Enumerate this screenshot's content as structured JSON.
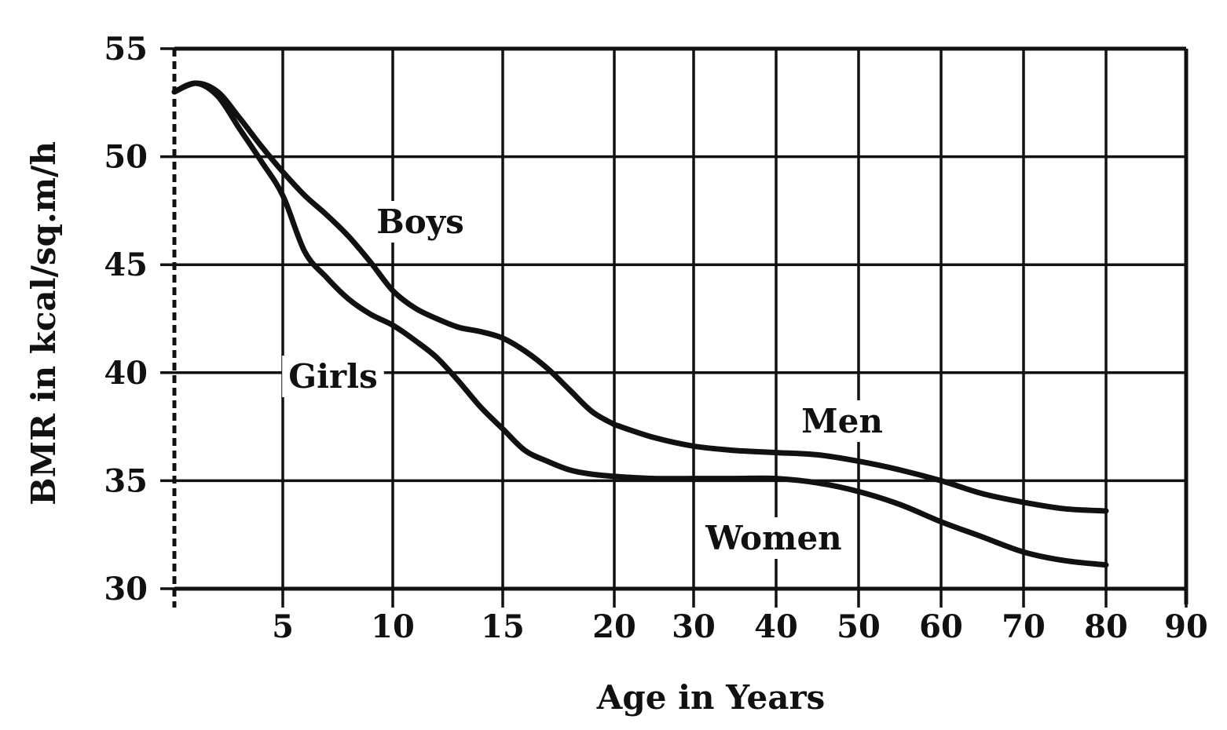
{
  "chart_data": {
    "type": "line",
    "title": "",
    "xlabel": "Age in Years",
    "ylabel": "BMR in kcal/sq.m/h",
    "ylim": [
      30,
      55
    ],
    "grid": true,
    "x_scale": "piecewise: 5-year steps from 0 to 20, 10-year steps from 20 to 90",
    "x_ticks": [
      "5",
      "10",
      "15",
      "20",
      "30",
      "40",
      "50",
      "60",
      "70",
      "80",
      "90"
    ],
    "y_ticks": [
      "30",
      "35",
      "40",
      "45",
      "50",
      "55"
    ],
    "series": [
      {
        "name": "Boys",
        "x": [
          0,
          1,
          2,
          3,
          4,
          5,
          6,
          7,
          8,
          9,
          10,
          11,
          12,
          13,
          14,
          15,
          16,
          17,
          18,
          19,
          20
        ],
        "values": [
          53.0,
          53.4,
          53.0,
          51.8,
          50.5,
          49.3,
          48.2,
          47.3,
          46.3,
          45.1,
          43.8,
          43.0,
          42.5,
          42.1,
          41.9,
          41.6,
          41.0,
          40.2,
          39.2,
          38.2,
          37.6
        ]
      },
      {
        "name": "Men",
        "x": [
          20,
          25,
          30,
          35,
          40,
          45,
          50,
          55,
          60,
          65,
          70,
          75,
          80
        ],
        "values": [
          37.6,
          37.0,
          36.6,
          36.4,
          36.3,
          36.2,
          35.9,
          35.5,
          35.0,
          34.4,
          34.0,
          33.7,
          33.6
        ]
      },
      {
        "name": "Girls",
        "x": [
          0,
          1,
          2,
          3,
          4,
          5,
          6,
          7,
          8,
          9,
          10,
          11,
          12,
          13,
          14,
          15,
          16,
          17,
          18,
          19,
          20
        ],
        "values": [
          53.0,
          53.4,
          52.8,
          51.3,
          49.8,
          48.2,
          45.6,
          44.4,
          43.4,
          42.7,
          42.2,
          41.5,
          40.7,
          39.6,
          38.4,
          37.4,
          36.4,
          35.9,
          35.5,
          35.3,
          35.2
        ]
      },
      {
        "name": "Women",
        "x": [
          20,
          25,
          30,
          35,
          40,
          45,
          50,
          55,
          60,
          65,
          70,
          75,
          80
        ],
        "values": [
          35.2,
          35.1,
          35.1,
          35.1,
          35.1,
          34.9,
          34.5,
          33.9,
          33.1,
          32.4,
          31.7,
          31.3,
          31.1
        ]
      }
    ]
  }
}
